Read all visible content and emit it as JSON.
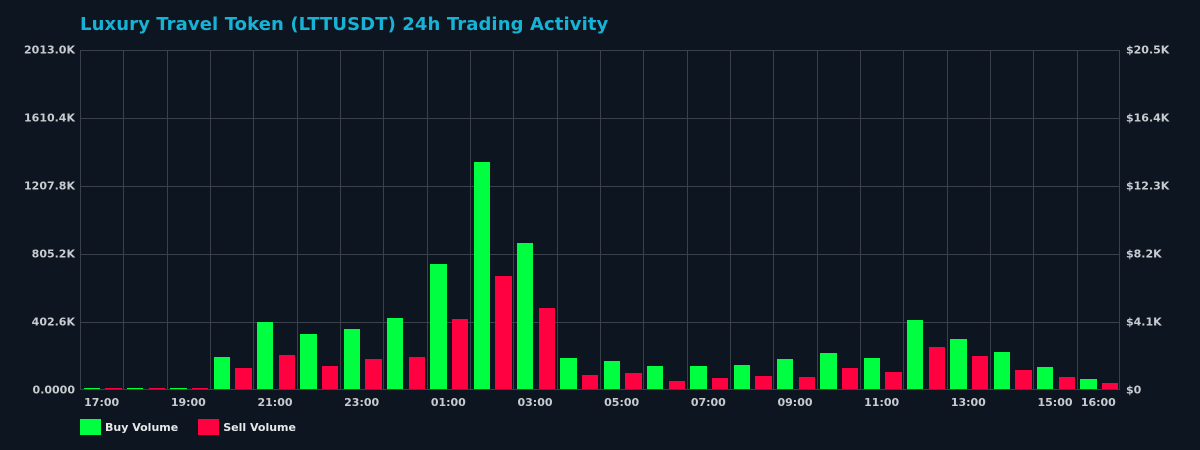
{
  "title": "Luxury Travel Token (LTTUSDT) 24h Trading Activity",
  "colors": {
    "background": "#0d1520",
    "title": "#17b3d6",
    "grid": "#3a414b",
    "buy": "#00ff41",
    "sell": "#ff0040",
    "tick_text": "#c8ccd0"
  },
  "axes": {
    "left_ticks": [
      "2013.0K",
      "1610.4K",
      "1207.8K",
      "805.2K",
      "402.6K",
      "0.0000"
    ],
    "right_ticks": [
      "$20.5K",
      "$16.4K",
      "$12.3K",
      "$8.2K",
      "$4.1K",
      "$0"
    ],
    "x_ticks": [
      "17:00",
      "19:00",
      "21:00",
      "23:00",
      "01:00",
      "03:00",
      "05:00",
      "07:00",
      "09:00",
      "11:00",
      "13:00",
      "15:00",
      "16:00"
    ]
  },
  "legend": {
    "buy_label": "Buy Volume",
    "sell_label": "Sell Volume"
  },
  "chart_data": {
    "type": "bar",
    "title": "Luxury Travel Token (LTTUSDT) 24h Trading Activity",
    "xlabel": "",
    "ylabel": "Volume",
    "y2label": "Value (USD)",
    "ylim": [
      0,
      2013000
    ],
    "y2lim": [
      0,
      20500
    ],
    "grid": true,
    "legend_position": "bottom-left",
    "categories": [
      "17:00",
      "18:00",
      "19:00",
      "20:00",
      "21:00",
      "22:00",
      "23:00",
      "00:00",
      "01:00",
      "02:00",
      "03:00",
      "04:00",
      "05:00",
      "06:00",
      "07:00",
      "08:00",
      "09:00",
      "10:00",
      "11:00",
      "12:00",
      "13:00",
      "14:00",
      "15:00",
      "16:00"
    ],
    "series": [
      {
        "name": "Buy Volume",
        "color": "#00ff41",
        "values": [
          3000,
          3000,
          3000,
          189000,
          397000,
          326000,
          355000,
          420000,
          740000,
          1350000,
          870000,
          184000,
          166000,
          136000,
          136000,
          142000,
          178000,
          213000,
          184000,
          409000,
          296000,
          219000,
          130000,
          59000
        ]
      },
      {
        "name": "Sell Volume",
        "color": "#ff0040",
        "values": [
          2000,
          2000,
          2000,
          124000,
          201000,
          136000,
          178000,
          189000,
          414000,
          669000,
          480000,
          83000,
          95000,
          47000,
          65000,
          77000,
          71000,
          124000,
          101000,
          249000,
          195000,
          112000,
          71000,
          36000
        ]
      }
    ]
  }
}
